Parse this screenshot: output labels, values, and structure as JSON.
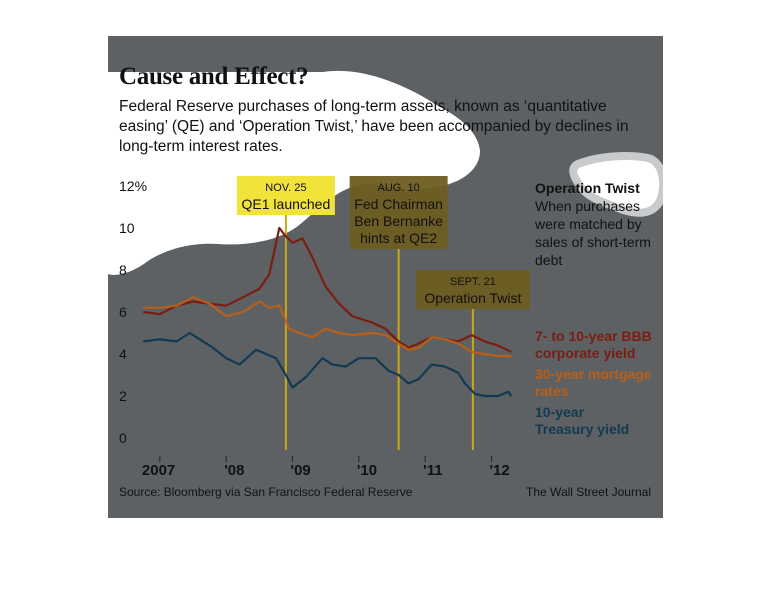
{
  "title": "Cause and Effect?",
  "subtitle": "Federal Reserve purchases of long-term assets, known as ‘quantitative easing’ (QE) and ‘Operation Twist,’ have been accompanied by declines in long-term interest rates.",
  "source": "Source: Bloomberg via San Francisco Federal Reserve",
  "publisher": "The Wall Street Journal",
  "operation_twist_note": {
    "heading": "Operation Twist",
    "body": "When purchases were matched by sales of short-term debt"
  },
  "colors": {
    "panel_background": "#5e6163",
    "corporate": "#7a1d12",
    "mortgage": "#b85f1a",
    "treasury": "#123a52",
    "annotation": "#c9a818"
  },
  "chart_data": {
    "type": "line",
    "ylim": [
      0,
      12
    ],
    "y_ticks": [
      0,
      2,
      4,
      6,
      8,
      10,
      12
    ],
    "y_tick_labels": [
      "0",
      "2",
      "4",
      "6",
      "8",
      "10",
      "12%"
    ],
    "xlim": [
      2006.7,
      2012.4
    ],
    "x_ticks": [
      2007,
      2008,
      2009,
      2010,
      2011,
      2012
    ],
    "x_tick_labels": [
      "2007",
      "'08",
      "'09",
      "'10",
      "'11",
      "'12"
    ],
    "grid": false,
    "legend_position": "right",
    "series": [
      {
        "name": "7- to 10-year BBB corporate yield",
        "color": "#7a1d12",
        "x": [
          2006.75,
          2007.0,
          2007.25,
          2007.5,
          2007.75,
          2008.0,
          2008.25,
          2008.5,
          2008.65,
          2008.8,
          2008.9,
          2009.0,
          2009.15,
          2009.3,
          2009.5,
          2009.7,
          2009.9,
          2010.2,
          2010.4,
          2010.6,
          2010.75,
          2010.9,
          2011.1,
          2011.3,
          2011.5,
          2011.7,
          2011.9,
          2012.1,
          2012.3
        ],
        "y": [
          6.0,
          5.9,
          6.3,
          6.5,
          6.4,
          6.3,
          6.7,
          7.1,
          7.8,
          10.0,
          9.6,
          9.3,
          9.5,
          8.6,
          7.2,
          6.4,
          5.8,
          5.5,
          5.2,
          4.6,
          4.3,
          4.5,
          4.8,
          4.7,
          4.6,
          4.9,
          4.6,
          4.4,
          4.1
        ]
      },
      {
        "name": "30-year mortgage rates",
        "color": "#b85f1a",
        "x": [
          2006.75,
          2007.0,
          2007.25,
          2007.5,
          2007.75,
          2008.0,
          2008.25,
          2008.5,
          2008.65,
          2008.8,
          2008.95,
          2009.1,
          2009.3,
          2009.5,
          2009.7,
          2009.9,
          2010.2,
          2010.4,
          2010.6,
          2010.75,
          2010.9,
          2011.1,
          2011.3,
          2011.5,
          2011.7,
          2011.9,
          2012.1,
          2012.3
        ],
        "y": [
          6.2,
          6.2,
          6.3,
          6.7,
          6.4,
          5.8,
          6.0,
          6.5,
          6.2,
          6.3,
          5.2,
          5.0,
          4.8,
          5.2,
          5.0,
          4.9,
          5.0,
          4.9,
          4.5,
          4.2,
          4.3,
          4.8,
          4.7,
          4.5,
          4.1,
          4.0,
          3.9,
          3.9
        ]
      },
      {
        "name": "10-year Treasury yield",
        "color": "#123a52",
        "x": [
          2006.75,
          2007.0,
          2007.25,
          2007.45,
          2007.6,
          2007.8,
          2008.0,
          2008.2,
          2008.45,
          2008.6,
          2008.75,
          2008.9,
          2009.0,
          2009.2,
          2009.45,
          2009.6,
          2009.8,
          2010.0,
          2010.25,
          2010.45,
          2010.6,
          2010.75,
          2010.9,
          2011.1,
          2011.3,
          2011.5,
          2011.6,
          2011.75,
          2011.9,
          2012.1,
          2012.25,
          2012.3
        ],
        "y": [
          4.6,
          4.7,
          4.6,
          5.0,
          4.7,
          4.3,
          3.8,
          3.5,
          4.2,
          4.0,
          3.8,
          3.0,
          2.4,
          2.9,
          3.8,
          3.5,
          3.4,
          3.8,
          3.8,
          3.2,
          3.0,
          2.6,
          2.8,
          3.5,
          3.4,
          3.1,
          2.6,
          2.1,
          2.0,
          2.0,
          2.2,
          2.0
        ]
      }
    ],
    "annotations": [
      {
        "date_label": "NOV. 25",
        "text": [
          "QE1 launched"
        ],
        "x": 2008.9
      },
      {
        "date_label": "AUG. 10",
        "text": [
          "Fed Chairman",
          "Ben Bernanke",
          "hints at QE2"
        ],
        "x": 2010.6
      },
      {
        "date_label": "SEPT. 21",
        "text": [
          "Operation Twist"
        ],
        "x": 2011.72
      }
    ]
  }
}
